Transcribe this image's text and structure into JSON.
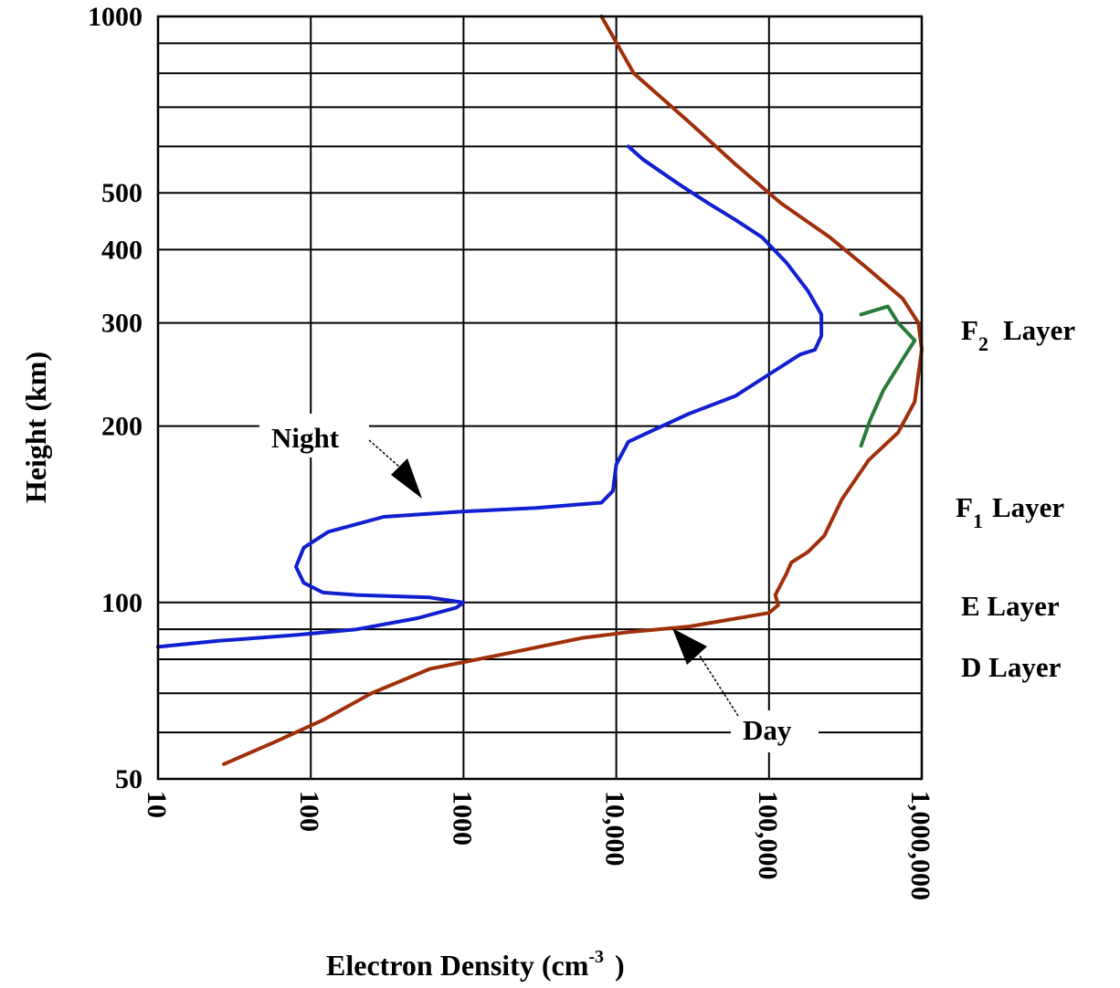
{
  "chart_data": {
    "type": "line",
    "title": "",
    "xlabel": "Electron Density (cm",
    "xlabel_exponent": "-3",
    "xlabel_close": ")",
    "ylabel": "Height (km)",
    "x_scale": "log",
    "y_scale": "log",
    "xlim": [
      10,
      1000000
    ],
    "ylim": [
      50,
      1000
    ],
    "grid": true,
    "x_ticks": [
      {
        "value": 10,
        "label": "10"
      },
      {
        "value": 100,
        "label": "100"
      },
      {
        "value": 1000,
        "label": "1000"
      },
      {
        "value": 10000,
        "label": "10,000"
      },
      {
        "value": 100000,
        "label": "100,000"
      },
      {
        "value": 1000000,
        "label": "1,000,000"
      }
    ],
    "y_ticks": [
      {
        "value": 1000,
        "label": "1000"
      },
      {
        "value": 500,
        "label": "500"
      },
      {
        "value": 400,
        "label": "400"
      },
      {
        "value": 300,
        "label": "300"
      },
      {
        "value": 200,
        "label": "200"
      },
      {
        "value": 100,
        "label": "100"
      },
      {
        "value": 50,
        "label": "50"
      }
    ],
    "y_gridlines": [
      50,
      60,
      70,
      80,
      90,
      100,
      200,
      300,
      400,
      500,
      600,
      700,
      800,
      900,
      1000
    ],
    "series": [
      {
        "color": "#a0300a",
        "x": [
          27,
          60,
          120,
          250,
          600,
          2000,
          6000,
          12000,
          30000,
          100000,
          115000,
          110000,
          130000,
          140000,
          180000,
          230000,
          300000,
          450000,
          700000,
          900000,
          1000000,
          950000,
          750000,
          450000,
          250000,
          120000,
          60000,
          30000,
          13000,
          8000
        ],
        "y": [
          53,
          58,
          63,
          70,
          77,
          82,
          87,
          89,
          91,
          96,
          99,
          103,
          112,
          117,
          122,
          130,
          150,
          175,
          195,
          220,
          270,
          300,
          330,
          370,
          420,
          480,
          560,
          660,
          800,
          1000
        ]
      },
      {
        "color": "#2a7a3a",
        "x": [
          400000,
          460000,
          560000,
          750000,
          900000,
          700000,
          600000,
          400000
        ],
        "y": [
          185,
          205,
          230,
          260,
          280,
          300,
          320,
          310
        ]
      },
      {
        "color": "#1020d0",
        "x": [
          10,
          25,
          80,
          200,
          500,
          900,
          1000,
          600,
          200,
          120,
          90,
          80,
          90,
          130,
          300,
          1000,
          3000,
          8000,
          9500,
          10000,
          12000,
          20000,
          30000,
          60000,
          100000,
          160000,
          200000,
          220000,
          220000,
          180000,
          130000,
          90000,
          60000,
          40000,
          25000,
          15000,
          12000
        ],
        "y": [
          84,
          86,
          88,
          90,
          94,
          98,
          100,
          102,
          103,
          104,
          108,
          115,
          124,
          132,
          140,
          143,
          145,
          148,
          155,
          172,
          188,
          200,
          210,
          225,
          245,
          265,
          270,
          285,
          310,
          340,
          380,
          420,
          450,
          480,
          520,
          570,
          600
        ]
      }
    ],
    "annotations": {
      "night": "Night",
      "day": "Day"
    },
    "layer_labels": {
      "f2": {
        "text": "F",
        "sub": "2",
        "rest": "Layer"
      },
      "f1": {
        "text": "F",
        "sub": "1",
        "rest": "Layer"
      },
      "e": "E Layer",
      "d": "D Layer"
    }
  }
}
